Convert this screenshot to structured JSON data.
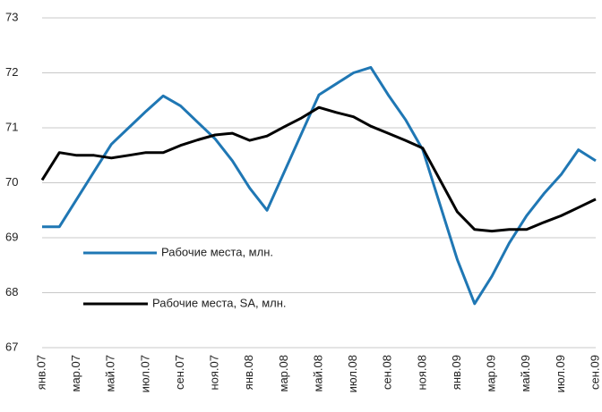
{
  "chart_data": {
    "type": "line",
    "categories": [
      "янв.07",
      null,
      "мар.07",
      null,
      "май.07",
      null,
      "июл.07",
      null,
      "сен.07",
      null,
      "ноя.07",
      null,
      "янв.08",
      null,
      "мар.08",
      null,
      "май.08",
      null,
      "июл.08",
      null,
      "сен.08",
      null,
      "ноя.08",
      null,
      "янв.09",
      null,
      "мар.09",
      null,
      "май.09",
      null,
      "июл.09",
      null,
      "сен.09"
    ],
    "series": [
      {
        "name": "Рабочие места, млн.",
        "color": "#1f77b4",
        "values": [
          69.2,
          69.2,
          69.7,
          70.2,
          70.7,
          71.0,
          71.3,
          71.58,
          71.4,
          71.1,
          70.8,
          70.4,
          69.9,
          69.5,
          70.2,
          70.9,
          71.6,
          71.8,
          72.0,
          72.1,
          71.6,
          71.15,
          70.6,
          69.6,
          68.6,
          67.8,
          68.3,
          68.9,
          69.4,
          69.8,
          70.15,
          70.6,
          70.4
        ]
      },
      {
        "name": "Рабочие места, SA, млн.",
        "color": "#000000",
        "values": [
          70.05,
          70.55,
          70.5,
          70.5,
          70.45,
          70.5,
          70.55,
          70.55,
          70.68,
          70.78,
          70.87,
          70.9,
          70.77,
          70.85,
          71.02,
          71.18,
          71.37,
          71.28,
          71.2,
          71.03,
          70.9,
          70.77,
          70.63,
          70.05,
          69.47,
          69.15,
          69.12,
          69.15,
          69.15,
          69.28,
          69.4,
          69.55,
          69.7
        ]
      }
    ],
    "ylim": [
      67,
      73
    ],
    "yticks": [
      67,
      68,
      69,
      70,
      71,
      72,
      73
    ],
    "grid": true
  }
}
